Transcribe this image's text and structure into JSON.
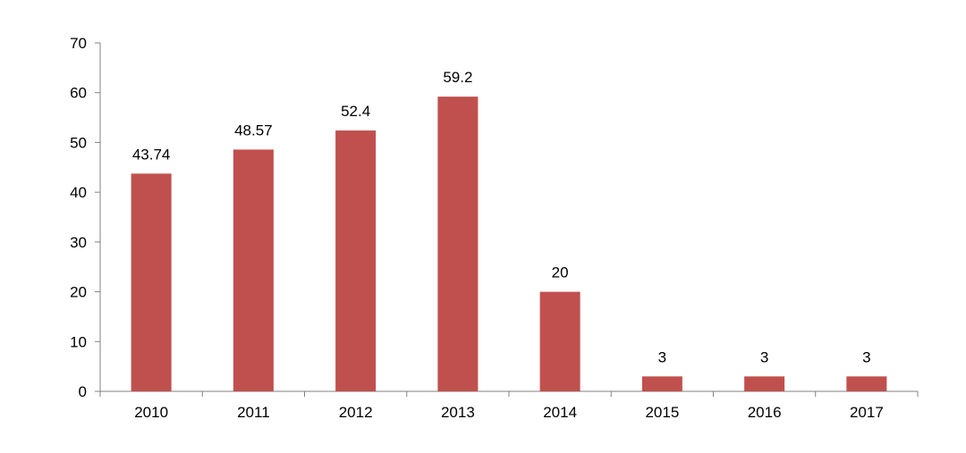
{
  "chart_data": {
    "type": "bar",
    "categories": [
      "2010",
      "2011",
      "2012",
      "2013",
      "2014",
      "2015",
      "2016",
      "2017"
    ],
    "values": [
      43.74,
      48.57,
      52.4,
      59.2,
      20,
      3,
      3,
      3
    ],
    "data_labels": [
      "43.74",
      "48.57",
      "52.4",
      "59.2",
      "20",
      "3",
      "3",
      "3"
    ],
    "y_ticks": [
      "0",
      "10",
      "20",
      "30",
      "40",
      "50",
      "60",
      "70"
    ],
    "ylim": [
      0,
      70
    ],
    "y_step": 10,
    "title": "",
    "xlabel": "",
    "ylabel": "",
    "grid": false,
    "legend": "none",
    "colors": {
      "bar": "#c0504d",
      "axis": "#808080",
      "text": "#000000"
    }
  }
}
